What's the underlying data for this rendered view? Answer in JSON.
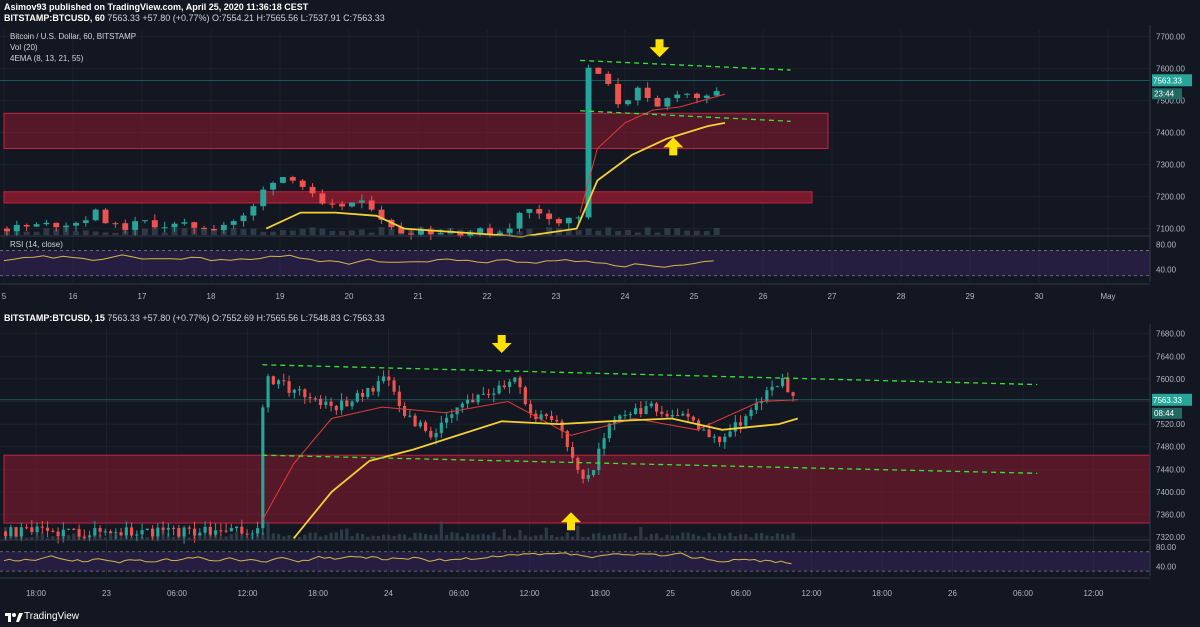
{
  "header": {
    "publisher_line": "Asimov93 published on TradingView.com, April 25, 2020 11:36:18 CEST"
  },
  "top": {
    "ohlc": {
      "symbol": "BITSTAMP:BTCUSD, 60",
      "last": "7563.33",
      "change": "+57.80 (+0.77%)",
      "o": "7554.21",
      "h": "7565.56",
      "l": "7537.91",
      "c": "7563.33"
    },
    "legend": [
      "Bitcoin / U.S. Dollar, 60, BITSTAMP",
      "Vol (20)",
      "4EMA (8, 13, 21, 55)"
    ],
    "rsi_label": "RSI (14, close)",
    "price_badge": "7563.33",
    "timer_badge": "23:44"
  },
  "bottom": {
    "ohlc": {
      "symbol": "BITSTAMP:BTCUSD, 15",
      "last": "7563.33",
      "change": "+57.80 (+0.77%)",
      "o": "7552.69",
      "h": "7565.56",
      "l": "7548.83",
      "c": "7563.33"
    },
    "price_badge": "7563.33",
    "timer_badge": "08:44"
  },
  "footer": {
    "brand": "TradingView"
  },
  "colors": {
    "bg": "#131722",
    "up": "#26a69a",
    "down": "#ef5350",
    "zone": "#8b1a2e",
    "ema_long": "#f5d033",
    "ema_short": "#e53935",
    "trend": "#35e635",
    "arrow": "#ffe100",
    "rsi": "#d4b84a",
    "rsi_band": "#3b2766"
  },
  "chart_data": [
    {
      "type": "candlestick",
      "title": "Bitcoin / U.S. Dollar, 60, BITSTAMP",
      "timeframe": "60",
      "x_tick_labels": [
        "5",
        "16",
        "17",
        "18",
        "19",
        "20",
        "21",
        "22",
        "23",
        "24",
        "25",
        "26",
        "27",
        "28",
        "29",
        "30",
        "May"
      ],
      "y_tick_labels": [
        "7700.00",
        "7600.00",
        "7500.00",
        "7400.00",
        "7300.00",
        "7200.00",
        "7100.00"
      ],
      "ylim": [
        7080,
        7720
      ],
      "price_series": [
        [
          0,
          7100
        ],
        [
          1,
          7120
        ],
        [
          1.3,
          7150
        ],
        [
          1.6,
          7100
        ],
        [
          2,
          7120
        ],
        [
          2.3,
          7110
        ],
        [
          3,
          7105
        ],
        [
          3.5,
          7140
        ],
        [
          3.8,
          7250
        ],
        [
          4.1,
          7270
        ],
        [
          4.3,
          7230
        ],
        [
          4.6,
          7160
        ],
        [
          5,
          7180
        ],
        [
          5.3,
          7170
        ],
        [
          5.6,
          7090
        ],
        [
          5.9,
          7095
        ],
        [
          6.3,
          7090
        ],
        [
          7.2,
          7090
        ],
        [
          7.5,
          7160
        ],
        [
          7.8,
          7150
        ],
        [
          8,
          7120
        ],
        [
          8.3,
          7140
        ],
        [
          8.35,
          7600
        ],
        [
          8.6,
          7580
        ],
        [
          8.9,
          7480
        ],
        [
          9.1,
          7540
        ],
        [
          9.4,
          7470
        ],
        [
          9.7,
          7530
        ],
        [
          10.2,
          7500
        ],
        [
          10.45,
          7563
        ]
      ],
      "ema_long_series": [
        [
          3.8,
          7100
        ],
        [
          4.3,
          7150
        ],
        [
          4.8,
          7150
        ],
        [
          5.4,
          7140
        ],
        [
          5.8,
          7100
        ],
        [
          7.5,
          7075
        ],
        [
          8.3,
          7100
        ],
        [
          8.6,
          7250
        ],
        [
          9.1,
          7330
        ],
        [
          9.6,
          7380
        ],
        [
          10.2,
          7420
        ],
        [
          10.45,
          7430
        ]
      ],
      "ema_short_series": [
        [
          8.35,
          7150
        ],
        [
          8.6,
          7350
        ],
        [
          9.0,
          7430
        ],
        [
          9.4,
          7470
        ],
        [
          9.8,
          7480
        ],
        [
          10.45,
          7520
        ]
      ],
      "zones": [
        [
          7350,
          7460
        ],
        [
          7180,
          7215
        ]
      ],
      "trendlines": [
        [
          [
            8.35,
            7625
          ],
          [
            11.4,
            7595
          ]
        ],
        [
          [
            8.35,
            7468
          ],
          [
            11.4,
            7435
          ]
        ]
      ],
      "arrows": [
        {
          "dir": "down",
          "x": 9.5,
          "y": 7660
        },
        {
          "dir": "up",
          "x": 9.7,
          "y": 7360
        }
      ],
      "rsi": {
        "label": "RSI (14, close)",
        "ticks": [
          "80.00",
          "40.00"
        ],
        "ylim": [
          20,
          90
        ]
      }
    },
    {
      "type": "candlestick",
      "title": "BITSTAMP:BTCUSD, 15",
      "timeframe": "15",
      "x_tick_labels": [
        "18:00",
        "23",
        "06:00",
        "12:00",
        "18:00",
        "24",
        "06:00",
        "12:00",
        "18:00",
        "25",
        "06:00",
        "12:00",
        "18:00",
        "26",
        "06:00",
        "12:00"
      ],
      "y_tick_labels": [
        "7680.00",
        "7640.00",
        "7600.00",
        "7560.00",
        "7520.00",
        "7480.00",
        "7440.00",
        "7400.00",
        "7360.00",
        "7320.00"
      ],
      "ylim": [
        7315,
        7690
      ],
      "price_series": [
        [
          0,
          7330
        ],
        [
          4,
          7330
        ],
        [
          4.1,
          7600
        ],
        [
          4.6,
          7580
        ],
        [
          5.2,
          7550
        ],
        [
          5.8,
          7580
        ],
        [
          6.0,
          7610
        ],
        [
          6.3,
          7540
        ],
        [
          6.8,
          7500
        ],
        [
          7.3,
          7560
        ],
        [
          7.9,
          7590
        ],
        [
          8.1,
          7610
        ],
        [
          8.3,
          7540
        ],
        [
          8.8,
          7520
        ],
        [
          9.2,
          7410
        ],
        [
          9.6,
          7520
        ],
        [
          10.2,
          7550
        ],
        [
          10.8,
          7530
        ],
        [
          11.3,
          7490
        ],
        [
          11.8,
          7540
        ],
        [
          12.3,
          7600
        ],
        [
          12.6,
          7563
        ]
      ],
      "ema_long_series": [
        [
          4.6,
          7318
        ],
        [
          5.2,
          7400
        ],
        [
          5.8,
          7455
        ],
        [
          6.5,
          7475
        ],
        [
          7.2,
          7500
        ],
        [
          7.9,
          7525
        ],
        [
          8.8,
          7520
        ],
        [
          9.6,
          7525
        ],
        [
          10.6,
          7530
        ],
        [
          11.4,
          7510
        ],
        [
          12.3,
          7520
        ],
        [
          12.6,
          7530
        ]
      ],
      "ema_short_series": [
        [
          4.1,
          7350
        ],
        [
          4.6,
          7450
        ],
        [
          5.2,
          7530
        ],
        [
          6.0,
          7550
        ],
        [
          7.0,
          7540
        ],
        [
          8.0,
          7560
        ],
        [
          9.0,
          7500
        ],
        [
          10.0,
          7530
        ],
        [
          11.0,
          7510
        ],
        [
          12.0,
          7560
        ],
        [
          12.6,
          7563
        ]
      ],
      "zones": [
        [
          7345,
          7465
        ]
      ],
      "trendlines": [
        [
          [
            4.1,
            7625
          ],
          [
            16.4,
            7590
          ]
        ],
        [
          [
            4.1,
            7465
          ],
          [
            16.4,
            7433
          ]
        ]
      ],
      "arrows": [
        {
          "dir": "down",
          "x": 7.9,
          "y": 7660
        },
        {
          "dir": "up",
          "x": 9.0,
          "y": 7350
        }
      ],
      "rsi": {
        "ticks": [
          "80.00",
          "40.00"
        ],
        "ylim": [
          20,
          90
        ]
      }
    }
  ]
}
